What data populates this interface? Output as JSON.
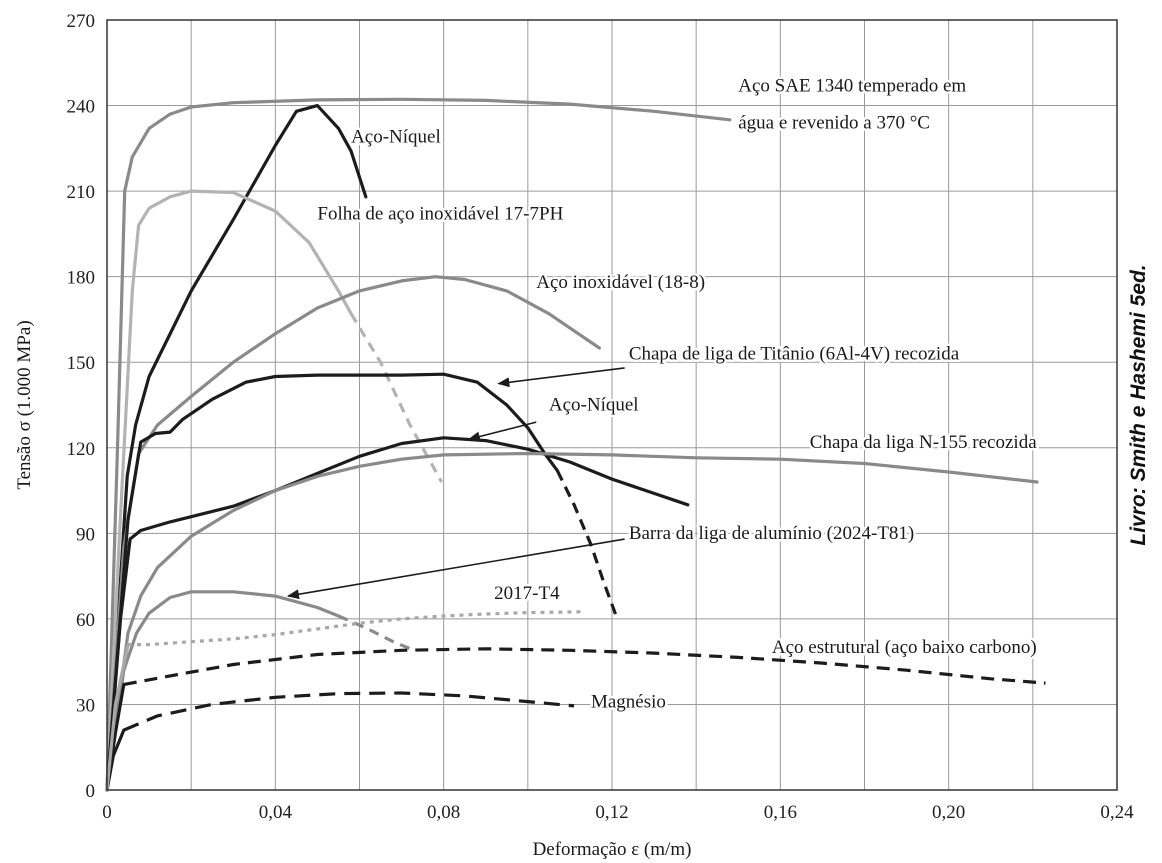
{
  "chart_data": {
    "type": "line",
    "xlabel": "Deformação ε (m/m)",
    "ylabel": "Tensão σ (1.000 MPa)",
    "xlim": [
      0,
      0.24
    ],
    "ylim": [
      0,
      270
    ],
    "x_ticks": [
      0,
      0.04,
      0.08,
      0.12,
      0.16,
      0.2,
      0.24
    ],
    "x_tick_labels": [
      "0",
      "0,04",
      "0,08",
      "0,12",
      "0,16",
      "0,20",
      "0,24"
    ],
    "y_ticks": [
      0,
      30,
      60,
      90,
      120,
      150,
      180,
      210,
      240,
      270
    ],
    "y_tick_labels": [
      "0",
      "30",
      "60",
      "90",
      "120",
      "150",
      "180",
      "210",
      "240",
      "270"
    ],
    "grid": true,
    "credit": "Livro: Smith e Hashemi 5ed.",
    "series": [
      {
        "name": "Aço SAE 1340 temperado em água e revenido a 370 °C",
        "label_lines": [
          "Aço SAE 1340 temperado em",
          "água e revenido a 370 °C"
        ],
        "color": "#8a8a8a",
        "dash": "",
        "points": [
          [
            0,
            0
          ],
          [
            0.0025,
            120
          ],
          [
            0.0042,
            210
          ],
          [
            0.006,
            222
          ],
          [
            0.01,
            232
          ],
          [
            0.015,
            237
          ],
          [
            0.02,
            239.5
          ],
          [
            0.03,
            241
          ],
          [
            0.05,
            242
          ],
          [
            0.07,
            242.2
          ],
          [
            0.09,
            241.8
          ],
          [
            0.11,
            240.5
          ],
          [
            0.13,
            238
          ],
          [
            0.148,
            235
          ]
        ]
      },
      {
        "name": "Aço-Níquel",
        "label_lines": [
          "Aço-Níquel"
        ],
        "color": "#1c1c1c",
        "dash": "",
        "points": [
          [
            0,
            0
          ],
          [
            0.0048,
            110
          ],
          [
            0.0068,
            128
          ],
          [
            0.01,
            145
          ],
          [
            0.02,
            175
          ],
          [
            0.03,
            200
          ],
          [
            0.04,
            226
          ],
          [
            0.045,
            238
          ],
          [
            0.05,
            240
          ],
          [
            0.055,
            232
          ],
          [
            0.058,
            224
          ],
          [
            0.0615,
            208
          ]
        ]
      },
      {
        "name": "Folha de aço inoxidável 17-7PH",
        "label_lines": [
          "Folha de aço inoxidável 17-7PH"
        ],
        "color": "#b3b3b3",
        "dash": "",
        "points": [
          [
            0,
            0
          ],
          [
            0.003,
            90
          ],
          [
            0.006,
            175
          ],
          [
            0.0075,
            198
          ],
          [
            0.01,
            204
          ],
          [
            0.015,
            208
          ],
          [
            0.02,
            210
          ],
          [
            0.03,
            209.5
          ],
          [
            0.04,
            203
          ],
          [
            0.048,
            192
          ],
          [
            0.055,
            175
          ],
          [
            0.058,
            167
          ]
        ]
      },
      {
        "name": "",
        "color": "#b3b3b3",
        "dash": "10,7",
        "points": [
          [
            0.058,
            167
          ],
          [
            0.065,
            150
          ],
          [
            0.072,
            128
          ],
          [
            0.0795,
            108
          ]
        ]
      },
      {
        "name": "Aço inoxidável (18-8)",
        "label_lines": [
          "Aço inoxidável (18-8)"
        ],
        "color": "#8a8a8a",
        "dash": "",
        "points": [
          [
            0,
            0
          ],
          [
            0.004,
            85
          ],
          [
            0.0075,
            118
          ],
          [
            0.012,
            128
          ],
          [
            0.02,
            138
          ],
          [
            0.03,
            150
          ],
          [
            0.04,
            160
          ],
          [
            0.05,
            169
          ],
          [
            0.06,
            175
          ],
          [
            0.07,
            178.5
          ],
          [
            0.078,
            180
          ],
          [
            0.085,
            179
          ],
          [
            0.095,
            175
          ],
          [
            0.105,
            167
          ],
          [
            0.112,
            160
          ],
          [
            0.117,
            155
          ]
        ]
      },
      {
        "name": "Chapa de liga de Titânio (6Al-4V) recozida",
        "label_lines": [
          "Chapa de liga de Titânio (6Al-4V) recozida"
        ],
        "color": "#1c1c1c",
        "dash": "",
        "points": [
          [
            0,
            0
          ],
          [
            0.005,
            95
          ],
          [
            0.008,
            122
          ],
          [
            0.0115,
            125
          ],
          [
            0.015,
            125.5
          ],
          [
            0.018,
            130
          ],
          [
            0.025,
            137
          ],
          [
            0.033,
            143
          ],
          [
            0.04,
            145
          ],
          [
            0.05,
            145.5
          ],
          [
            0.06,
            145.5
          ],
          [
            0.07,
            145.5
          ],
          [
            0.08,
            145.8
          ],
          [
            0.088,
            143
          ],
          [
            0.095,
            135
          ],
          [
            0.1,
            127
          ],
          [
            0.104,
            118
          ],
          [
            0.107,
            112
          ]
        ]
      },
      {
        "name": "",
        "color": "#1c1c1c",
        "dash": "11,7",
        "points": [
          [
            0.107,
            112
          ],
          [
            0.111,
            100
          ],
          [
            0.115,
            86
          ],
          [
            0.118,
            73
          ],
          [
            0.121,
            61
          ]
        ]
      },
      {
        "name": "Aço-Níquel",
        "label_lines": [
          "Aço-Níquel"
        ],
        "color": "#1c1c1c",
        "dash": "",
        "points": [
          [
            0,
            0
          ],
          [
            0.0032,
            60
          ],
          [
            0.0055,
            88
          ],
          [
            0.008,
            91
          ],
          [
            0.015,
            94
          ],
          [
            0.03,
            99.5
          ],
          [
            0.04,
            105
          ],
          [
            0.05,
            111
          ],
          [
            0.06,
            117
          ],
          [
            0.07,
            121.5
          ],
          [
            0.08,
            123.5
          ],
          [
            0.09,
            122.5
          ],
          [
            0.1,
            119.5
          ],
          [
            0.11,
            115
          ],
          [
            0.12,
            109
          ],
          [
            0.13,
            104
          ],
          [
            0.138,
            100
          ]
        ]
      },
      {
        "name": "Chapa da liga N-155 recozida",
        "label_lines": [
          "Chapa da liga N-155 recozida"
        ],
        "color": "#8a8a8a",
        "dash": "",
        "points": [
          [
            0,
            0
          ],
          [
            0.005,
            55
          ],
          [
            0.008,
            68
          ],
          [
            0.012,
            78
          ],
          [
            0.02,
            89
          ],
          [
            0.03,
            98
          ],
          [
            0.04,
            105
          ],
          [
            0.05,
            110
          ],
          [
            0.06,
            113.5
          ],
          [
            0.07,
            116
          ],
          [
            0.08,
            117.5
          ],
          [
            0.1,
            118
          ],
          [
            0.12,
            117.5
          ],
          [
            0.14,
            116.5
          ],
          [
            0.16,
            116
          ],
          [
            0.18,
            114.5
          ],
          [
            0.2,
            111.5
          ],
          [
            0.221,
            108
          ]
        ]
      },
      {
        "name": "Barra da liga de alumínio (2024-T81)",
        "label_lines": [
          "Barra da liga de alumínio (2024-T81)"
        ],
        "color": "#8a8a8a",
        "dash": "",
        "points": [
          [
            0,
            0
          ],
          [
            0.004,
            42
          ],
          [
            0.007,
            55
          ],
          [
            0.01,
            62
          ],
          [
            0.015,
            67.5
          ],
          [
            0.02,
            69.5
          ],
          [
            0.03,
            69.5
          ],
          [
            0.04,
            68
          ],
          [
            0.05,
            64
          ],
          [
            0.055,
            61
          ]
        ]
      },
      {
        "name": "",
        "color": "#8a8a8a",
        "dash": "10,7",
        "points": [
          [
            0.055,
            61
          ],
          [
            0.062,
            56.5
          ],
          [
            0.068,
            52
          ],
          [
            0.073,
            49
          ]
        ]
      },
      {
        "name": "2017-T4",
        "label_lines": [
          "2017-T4"
        ],
        "color": "#a8a8a8",
        "dash": "4,5",
        "points": [
          [
            0.005,
            51
          ],
          [
            0.01,
            51
          ],
          [
            0.02,
            52
          ],
          [
            0.03,
            53
          ],
          [
            0.04,
            54.5
          ],
          [
            0.05,
            56.5
          ],
          [
            0.06,
            58.5
          ],
          [
            0.07,
            60
          ],
          [
            0.08,
            61
          ],
          [
            0.09,
            61.7
          ],
          [
            0.1,
            62.2
          ],
          [
            0.113,
            62.5
          ]
        ]
      },
      {
        "name": "Aço estrutural (aço baixo carbono)",
        "label_lines": [
          "Aço estrutural (aço baixo carbono)"
        ],
        "color": "#1c1c1c",
        "dash": "13,8",
        "points": [
          [
            0.004,
            37
          ],
          [
            0.015,
            40
          ],
          [
            0.03,
            44
          ],
          [
            0.05,
            47.5
          ],
          [
            0.07,
            49
          ],
          [
            0.09,
            49.5
          ],
          [
            0.11,
            49
          ],
          [
            0.13,
            48
          ],
          [
            0.15,
            46.5
          ],
          [
            0.17,
            44.5
          ],
          [
            0.19,
            42
          ],
          [
            0.21,
            39
          ],
          [
            0.223,
            37.5
          ]
        ]
      },
      {
        "name": "Magnésio",
        "label_lines": [
          "Magnésio"
        ],
        "color": "#1c1c1c",
        "dash": "16,9",
        "points": [
          [
            0.004,
            21
          ],
          [
            0.012,
            26
          ],
          [
            0.025,
            30
          ],
          [
            0.04,
            32.5
          ],
          [
            0.055,
            33.8
          ],
          [
            0.07,
            34
          ],
          [
            0.085,
            33
          ],
          [
            0.1,
            31
          ],
          [
            0.111,
            29.5
          ]
        ]
      },
      {
        "name": "",
        "color": "#1c1c1c",
        "dash": "",
        "points": [
          [
            0,
            0
          ],
          [
            0.0015,
            12
          ],
          [
            0.004,
            21
          ]
        ]
      },
      {
        "name": "",
        "color": "#1c1c1c",
        "dash": "",
        "points": [
          [
            0,
            0
          ],
          [
            0.002,
            20
          ],
          [
            0.004,
            37
          ]
        ]
      },
      {
        "name": "",
        "color": "#a8a8a8",
        "dash": "",
        "points": [
          [
            0,
            0
          ],
          [
            0.002,
            30
          ],
          [
            0.005,
            51
          ]
        ]
      }
    ],
    "annotations": [
      {
        "text": "Aço SAE 1340 temperado em",
        "x": 0.15,
        "y": 245
      },
      {
        "text": "água e revenido a 370 °C",
        "x": 0.15,
        "y": 232
      },
      {
        "text": "Aço-Níquel",
        "x": 0.058,
        "y": 227
      },
      {
        "text": "Folha de aço inoxidável 17-7PH",
        "x": 0.05,
        "y": 200
      },
      {
        "text": "Aço inoxidável (18-8)",
        "x": 0.102,
        "y": 176
      },
      {
        "text": "Chapa de liga de Titânio (6Al-4V) recozida",
        "x": 0.124,
        "y": 151
      },
      {
        "text": "Aço-Níquel",
        "x": 0.105,
        "y": 133
      },
      {
        "text": "Chapa da liga N-155 recozida",
        "x": 0.167,
        "y": 120
      },
      {
        "text": "Barra da liga de alumínio (2024-T81)",
        "x": 0.124,
        "y": 88
      },
      {
        "text": "2017-T4",
        "x": 0.092,
        "y": 67
      },
      {
        "text": "Aço estrutural (aço baixo carbono)",
        "x": 0.158,
        "y": 48
      },
      {
        "text": "Magnésio",
        "x": 0.115,
        "y": 29
      }
    ],
    "arrows": [
      {
        "from": [
          0.123,
          148
        ],
        "to": [
          0.093,
          142.5
        ]
      },
      {
        "from": [
          0.102,
          129
        ],
        "to": [
          0.086,
          123
        ]
      },
      {
        "from": [
          0.123,
          88
        ],
        "to": [
          0.043,
          68
        ]
      }
    ]
  }
}
